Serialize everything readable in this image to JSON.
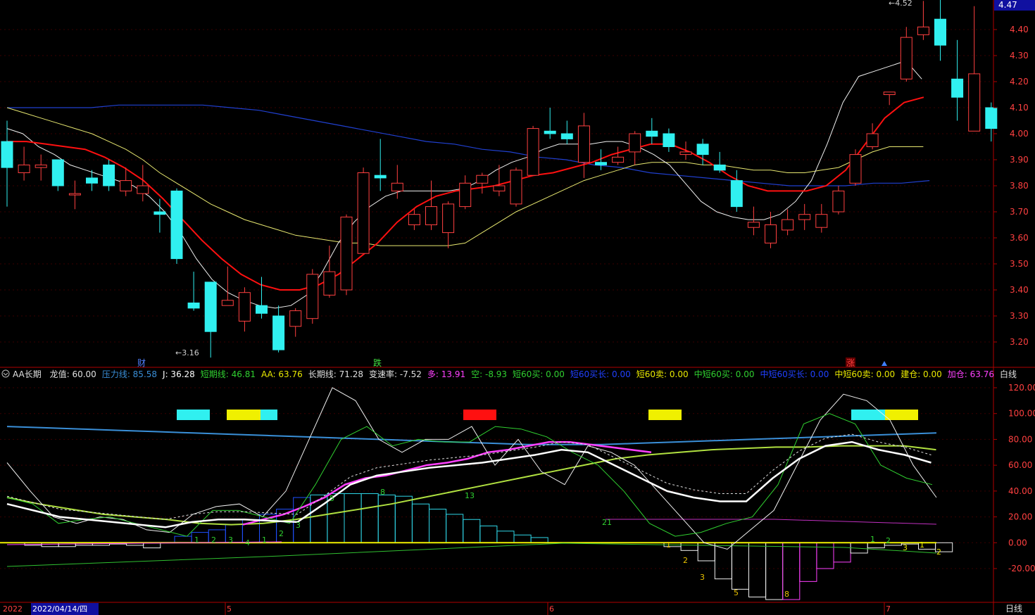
{
  "main_chart": {
    "price_ticks": [
      "4.40",
      "4.30",
      "4.20",
      "4.10",
      "4.00",
      "3.90",
      "3.80",
      "3.70",
      "3.60",
      "3.50",
      "3.40",
      "3.30",
      "3.20"
    ],
    "current_price": "4.47",
    "high_note": "4.52",
    "low_note": "3.16",
    "markers": [
      "财",
      "跌",
      "涨"
    ]
  },
  "indicator_bar": {
    "label_name": "AA长期",
    "items": [
      {
        "text": "龙值: 60.00",
        "color": "#e0e0e0"
      },
      {
        "text": "压力线: 85.58",
        "color": "#3a8fd8"
      },
      {
        "text": "J: 36.28",
        "color": "#ffffff"
      },
      {
        "text": "短期线: 46.81",
        "color": "#30d030"
      },
      {
        "text": "AA: 63.76",
        "color": "#e8e800"
      },
      {
        "text": "长期线: 71.28",
        "color": "#e0e0e0"
      },
      {
        "text": "变速率: -7.52",
        "color": "#e0e0e0"
      },
      {
        "text": "多: 13.91",
        "color": "#ff40ff"
      },
      {
        "text": "空: -8.93",
        "color": "#30d030"
      },
      {
        "text": "短60买: 0.00",
        "color": "#30d030"
      },
      {
        "text": "短60买长: 0.00",
        "color": "#2040ff"
      },
      {
        "text": "短60卖: 0.00",
        "color": "#e8e800"
      },
      {
        "text": "中短60买: 0.00",
        "color": "#30d030"
      },
      {
        "text": "中短60买长: 0.00",
        "color": "#2040ff"
      },
      {
        "text": "中短60卖: 0.00",
        "color": "#e8e800"
      },
      {
        "text": "建仓: 0.00",
        "color": "#e8e800"
      },
      {
        "text": "加仓: 63.76",
        "color": "#ff40ff"
      },
      {
        "text": "白线 ",
        "color": "#e0e0e0"
      }
    ]
  },
  "sub_chart": {
    "ticks": [
      "120.00",
      "100.00",
      "80.00",
      "60.00",
      "40.00",
      "20.00",
      "0.00",
      "-20.00"
    ],
    "bar_numbers_pos": [
      "1",
      "2",
      "3",
      "4",
      "1",
      "2",
      "3",
      "5",
      "8",
      "13",
      "21"
    ],
    "bar_numbers_neg": [
      "1",
      "2",
      "3",
      "5",
      "8",
      "1",
      "2",
      "3",
      "1",
      "2"
    ]
  },
  "time_axis": {
    "year_prefix": "2022",
    "selected_date": "2022/04/14/四",
    "month_labels": [
      "5",
      "6",
      "7"
    ],
    "period": "日线"
  },
  "chart_data": {
    "type": "candlestick",
    "y_range": [
      3.11,
      4.55
    ],
    "candles": [
      [
        3.97,
        3.87,
        4.05,
        3.72
      ],
      [
        3.85,
        3.88,
        3.95,
        3.82
      ],
      [
        3.87,
        3.88,
        3.92,
        3.82
      ],
      [
        3.9,
        3.8,
        3.9,
        3.78
      ],
      [
        3.77,
        3.77,
        3.82,
        3.71
      ],
      [
        3.83,
        3.81,
        3.86,
        3.78
      ],
      [
        3.88,
        3.8,
        3.9,
        3.78
      ],
      [
        3.78,
        3.82,
        3.87,
        3.76
      ],
      [
        3.77,
        3.8,
        3.88,
        3.74
      ],
      [
        3.7,
        3.69,
        3.75,
        3.62
      ],
      [
        3.78,
        3.52,
        3.79,
        3.5
      ],
      [
        3.35,
        3.33,
        3.47,
        3.32
      ],
      [
        3.43,
        3.24,
        3.43,
        3.14
      ],
      [
        3.34,
        3.36,
        3.49,
        3.34
      ],
      [
        3.28,
        3.39,
        3.41,
        3.24
      ],
      [
        3.34,
        3.31,
        3.45,
        3.29
      ],
      [
        3.3,
        3.17,
        3.34,
        3.16
      ],
      [
        3.26,
        3.32,
        3.33,
        3.22
      ],
      [
        3.29,
        3.46,
        3.48,
        3.27
      ],
      [
        3.38,
        3.47,
        3.57,
        3.37
      ],
      [
        3.4,
        3.68,
        3.69,
        3.38
      ],
      [
        3.54,
        3.85,
        3.87,
        3.54
      ],
      [
        3.84,
        3.83,
        3.98,
        3.78
      ],
      [
        3.78,
        3.81,
        3.88,
        3.75
      ],
      [
        3.65,
        3.69,
        3.71,
        3.63
      ],
      [
        3.65,
        3.72,
        3.82,
        3.63
      ],
      [
        3.62,
        3.73,
        3.74,
        3.56
      ],
      [
        3.72,
        3.81,
        3.84,
        3.71
      ],
      [
        3.81,
        3.84,
        3.85,
        3.77
      ],
      [
        3.78,
        3.8,
        3.88,
        3.76
      ],
      [
        3.73,
        3.86,
        3.87,
        3.72
      ],
      [
        3.84,
        4.02,
        4.03,
        3.84
      ],
      [
        4.01,
        4.0,
        4.1,
        3.98
      ],
      [
        4.0,
        3.98,
        4.05,
        3.96
      ],
      [
        3.89,
        4.03,
        4.08,
        3.83
      ],
      [
        3.89,
        3.88,
        3.94,
        3.86
      ],
      [
        3.89,
        3.91,
        3.95,
        3.88
      ],
      [
        3.93,
        4.0,
        4.01,
        3.88
      ],
      [
        4.01,
        3.99,
        4.06,
        3.96
      ],
      [
        4.0,
        3.95,
        4.02,
        3.93
      ],
      [
        3.92,
        3.93,
        3.97,
        3.9
      ],
      [
        3.96,
        3.92,
        3.98,
        3.88
      ],
      [
        3.88,
        3.86,
        3.93,
        3.85
      ],
      [
        3.82,
        3.72,
        3.86,
        3.7
      ],
      [
        3.64,
        3.66,
        3.72,
        3.61
      ],
      [
        3.58,
        3.65,
        3.7,
        3.56
      ],
      [
        3.63,
        3.67,
        3.71,
        3.61
      ],
      [
        3.67,
        3.69,
        3.73,
        3.63
      ],
      [
        3.64,
        3.69,
        3.73,
        3.62
      ],
      [
        3.7,
        3.78,
        3.8,
        3.69
      ],
      [
        3.81,
        3.92,
        3.94,
        3.8
      ],
      [
        3.95,
        4.0,
        4.04,
        3.94
      ],
      [
        4.15,
        4.16,
        4.16,
        4.11
      ],
      [
        4.21,
        4.37,
        4.41,
        4.2
      ],
      [
        4.38,
        4.41,
        4.51,
        4.36
      ],
      [
        4.44,
        4.34,
        4.53,
        4.28
      ],
      [
        4.21,
        4.14,
        4.36,
        4.05
      ],
      [
        4.01,
        4.23,
        4.49,
        4.01
      ],
      [
        4.1,
        4.02,
        4.12,
        3.97
      ]
    ],
    "ma_white": [
      4.02,
      4.0,
      3.95,
      3.92,
      3.88,
      3.86,
      3.84,
      3.82,
      3.8,
      3.76,
      3.7,
      3.62,
      3.52,
      3.44,
      3.39,
      3.36,
      3.34,
      3.33,
      3.34,
      3.38,
      3.47,
      3.58,
      3.66,
      3.72,
      3.76,
      3.78,
      3.78,
      3.78,
      3.78,
      3.79,
      3.82,
      3.86,
      3.89,
      3.91,
      3.94,
      3.96,
      3.96,
      3.96,
      3.97,
      3.97,
      3.95,
      3.92,
      3.88,
      3.81,
      3.74,
      3.7,
      3.68,
      3.67,
      3.67,
      3.69,
      3.74,
      3.82,
      3.96,
      4.12,
      4.22,
      4.24,
      4.26,
      4.28,
      4.21
    ],
    "ma_red": [
      3.97,
      3.97,
      3.96,
      3.95,
      3.94,
      3.91,
      3.87,
      3.82,
      3.75,
      3.67,
      3.59,
      3.52,
      3.46,
      3.42,
      3.4,
      3.4,
      3.42,
      3.46,
      3.52,
      3.58,
      3.66,
      3.72,
      3.76,
      3.78,
      3.79,
      3.8,
      3.82,
      3.84,
      3.85,
      3.87,
      3.89,
      3.92,
      3.94,
      3.96,
      3.96,
      3.93,
      3.89,
      3.84,
      3.8,
      3.78,
      3.78,
      3.78,
      3.8,
      3.86,
      3.96,
      4.06,
      4.12,
      4.14
    ],
    "ma_yellow": [
      4.1,
      4.08,
      4.06,
      4.04,
      4.02,
      4.0,
      3.97,
      3.94,
      3.9,
      3.85,
      3.81,
      3.77,
      3.73,
      3.7,
      3.67,
      3.65,
      3.63,
      3.61,
      3.6,
      3.59,
      3.58,
      3.58,
      3.57,
      3.57,
      3.57,
      3.57,
      3.57,
      3.58,
      3.62,
      3.66,
      3.7,
      3.73,
      3.76,
      3.79,
      3.82,
      3.84,
      3.86,
      3.88,
      3.89,
      3.89,
      3.89,
      3.88,
      3.88,
      3.87,
      3.86,
      3.86,
      3.85,
      3.85,
      3.86,
      3.87,
      3.9,
      3.93,
      3.95,
      3.95,
      3.95
    ],
    "ma_blue": [
      4.1,
      4.1,
      4.1,
      4.1,
      4.11,
      4.11,
      4.11,
      4.11,
      4.1,
      4.09,
      4.07,
      4.05,
      4.03,
      4.01,
      3.99,
      3.97,
      3.96,
      3.94,
      3.93,
      3.91,
      3.9,
      3.88,
      3.87,
      3.85,
      3.84,
      3.83,
      3.82,
      3.81,
      3.8,
      3.8,
      3.8,
      3.81,
      3.81,
      3.82
    ],
    "indicator_range": [
      -45,
      128
    ],
    "ind_white_thin": [
      62,
      40,
      20,
      15,
      20,
      18,
      10,
      8,
      22,
      28,
      30,
      20,
      40,
      80,
      120,
      110,
      80,
      70,
      80,
      80,
      90,
      60,
      80,
      55,
      45,
      75,
      70,
      60,
      40,
      20,
      0,
      -5,
      10,
      25,
      60,
      95,
      115,
      110,
      95,
      60,
      35
    ],
    "ind_green": [
      35,
      30,
      15,
      18,
      20,
      15,
      10,
      5,
      25,
      25,
      20,
      15,
      45,
      80,
      90,
      75,
      80,
      78,
      78,
      90,
      88,
      82,
      70,
      60,
      40,
      15,
      5,
      8,
      15,
      20,
      45,
      92,
      100,
      92,
      60,
      50,
      45
    ],
    "ind_white_thick": [
      30,
      25,
      20,
      18,
      16,
      14,
      12,
      16,
      18,
      18,
      17,
      16,
      30,
      45,
      52,
      55,
      58,
      60,
      62,
      65,
      68,
      72,
      70,
      60,
      50,
      40,
      35,
      32,
      32,
      50,
      65,
      75,
      78,
      72,
      68,
      62
    ],
    "ind_magenta_mid": [
      14,
      18,
      22,
      28,
      35,
      45,
      50,
      52,
      56,
      60,
      62,
      65,
      70,
      72,
      75,
      78,
      78,
      76,
      74,
      72,
      70
    ],
    "ind_blue_top": [
      90,
      89,
      88,
      87,
      86,
      85,
      84,
      83,
      82,
      81,
      80,
      79,
      78,
      77,
      76,
      76,
      76,
      77,
      78,
      79,
      80,
      81,
      82,
      83,
      84,
      85
    ],
    "ind_yellowgreen": [
      35,
      30,
      26,
      22,
      20,
      18,
      15,
      14,
      15,
      18,
      22,
      26,
      30,
      35,
      40,
      45,
      50,
      55,
      60,
      65,
      68,
      70,
      72,
      73,
      74,
      74,
      75,
      75,
      75,
      72
    ],
    "signals": [
      {
        "x0": 251,
        "x1": 298,
        "color": "#30f0f0"
      },
      {
        "x0": 322,
        "x1": 370,
        "color": "#f0f000"
      },
      {
        "x0": 370,
        "x1": 394,
        "color": "#30f0f0"
      },
      {
        "x0": 658,
        "x1": 705,
        "color": "#ff1010"
      },
      {
        "x0": 921,
        "x1": 968,
        "color": "#f0f000"
      },
      {
        "x0": 1209,
        "x1": 1257,
        "color": "#30f0f0"
      },
      {
        "x0": 1257,
        "x1": 1304,
        "color": "#f0f000"
      }
    ]
  }
}
